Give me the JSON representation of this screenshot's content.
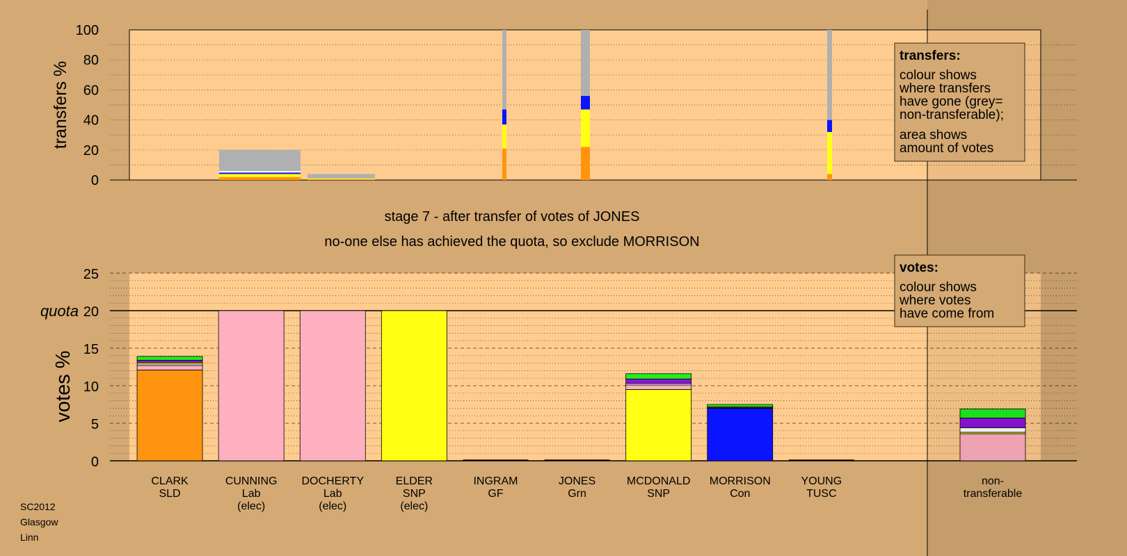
{
  "colors": {
    "page_bg": "#d4a973",
    "plot_bg": "#ffcc8f",
    "Lab": "#ffb0c0",
    "SNP": "#ffff14",
    "SLD": "#ff9410",
    "Con": "#0a14ff",
    "Grn": "#1ef01e",
    "GF": "#8c14dc",
    "TUSC": "#ffffff",
    "nontrans": "#b0b0b0"
  },
  "chart_data": [
    {
      "type": "bar",
      "ylabel": "transfers %",
      "ylim": [
        0,
        100
      ],
      "ytick_labels": [
        "0",
        "20",
        "40",
        "60",
        "80",
        "100"
      ],
      "columns": [
        {
          "x": "CUNNING",
          "segments": [
            {
              "party": "SLD",
              "value": 2
            },
            {
              "party": "SNP",
              "value": 2
            },
            {
              "party": "Con",
              "value": 1
            },
            {
              "party": "TUSC",
              "value": 1
            },
            {
              "party": "nontrans",
              "value": 14
            }
          ]
        },
        {
          "x": "DOCHERTY",
          "segments": [
            {
              "party": "SLD",
              "value": 0.5
            },
            {
              "party": "SNP",
              "value": 0.5
            },
            {
              "party": "nontrans",
              "value": 3
            }
          ]
        },
        {
          "x": "INGRAM",
          "segments": [
            {
              "party": "SLD",
              "value": 21
            },
            {
              "party": "SNP",
              "value": 16
            },
            {
              "party": "Con",
              "value": 10
            },
            {
              "party": "nontrans",
              "value": 53
            }
          ]
        },
        {
          "x": "JONES",
          "segments": [
            {
              "party": "SLD",
              "value": 22
            },
            {
              "party": "SNP",
              "value": 25
            },
            {
              "party": "Con",
              "value": 9
            },
            {
              "party": "nontrans",
              "value": 44
            }
          ]
        },
        {
          "x": "YOUNG",
          "segments": [
            {
              "party": "SLD",
              "value": 4
            },
            {
              "party": "SNP",
              "value": 28
            },
            {
              "party": "Con",
              "value": 8
            },
            {
              "party": "nontrans",
              "value": 60
            }
          ]
        }
      ],
      "legend": {
        "title": "transfers:",
        "lines_a": [
          "colour shows",
          "where transfers",
          "have gone (grey=",
          "non-transferable);"
        ],
        "lines_b": [
          "area shows",
          "amount of votes"
        ]
      }
    },
    {
      "type": "bar",
      "ylabel": "votes %",
      "ylim": [
        0,
        25
      ],
      "ytick_labels": [
        "0",
        "5",
        "10",
        "15",
        "20",
        "25"
      ],
      "quota": 20,
      "quota_label": "quota",
      "candidates": [
        {
          "name": "CLARK",
          "party": "SLD",
          "status": "",
          "segments": [
            {
              "party": "SLD",
              "value": 12.1
            },
            {
              "party": "Lab",
              "value": 0.6
            },
            {
              "party": "TUSC",
              "value": 0.2
            },
            {
              "party": "SNP",
              "value": 0.2
            },
            {
              "party": "GF",
              "value": 0.3
            },
            {
              "party": "Grn",
              "value": 0.5
            }
          ]
        },
        {
          "name": "CUNNING",
          "party": "Lab",
          "status": "(elec)",
          "segments": [
            {
              "party": "Lab",
              "value": 20
            }
          ]
        },
        {
          "name": "DOCHERTY",
          "party": "Lab",
          "status": "(elec)",
          "segments": [
            {
              "party": "Lab",
              "value": 20
            }
          ]
        },
        {
          "name": "ELDER",
          "party": "SNP",
          "status": "(elec)",
          "segments": [
            {
              "party": "SNP",
              "value": 20
            }
          ]
        },
        {
          "name": "INGRAM",
          "party": "GF",
          "status": "",
          "segments": []
        },
        {
          "name": "JONES",
          "party": "Grn",
          "status": "",
          "segments": []
        },
        {
          "name": "MCDONALD",
          "party": "SNP",
          "status": "",
          "segments": [
            {
              "party": "SNP",
              "value": 9.5
            },
            {
              "party": "Lab",
              "value": 0.6
            },
            {
              "party": "TUSC",
              "value": 0.2
            },
            {
              "party": "GF",
              "value": 0.6
            },
            {
              "party": "Grn",
              "value": 0.7
            }
          ]
        },
        {
          "name": "MORRISON",
          "party": "Con",
          "status": "",
          "segments": [
            {
              "party": "Con",
              "value": 7.0
            },
            {
              "party": "Lab",
              "value": 0.1
            },
            {
              "party": "SNP",
              "value": 0.1
            },
            {
              "party": "Grn",
              "value": 0.3
            }
          ]
        },
        {
          "name": "YOUNG",
          "party": "TUSC",
          "status": "",
          "segments": []
        }
      ],
      "nontransferable": {
        "label_lines": [
          "non-",
          "transferable"
        ],
        "segments": [
          {
            "party": "Lab",
            "value": 3.6
          },
          {
            "party": "SNP",
            "value": 0.2
          },
          {
            "party": "TUSC",
            "value": 0.6
          },
          {
            "party": "GF",
            "value": 1.3
          },
          {
            "party": "Grn",
            "value": 1.2
          }
        ]
      },
      "legend": {
        "title": "votes:",
        "lines": [
          "colour shows",
          "where votes",
          "have come from"
        ]
      }
    }
  ],
  "stage_title": "stage 7 - after transfer of votes of JONES",
  "stage_subtitle": "no-one else has achieved the quota, so exclude MORRISON",
  "footer": {
    "lines": [
      "SC2012",
      "Glasgow",
      "Linn"
    ]
  }
}
